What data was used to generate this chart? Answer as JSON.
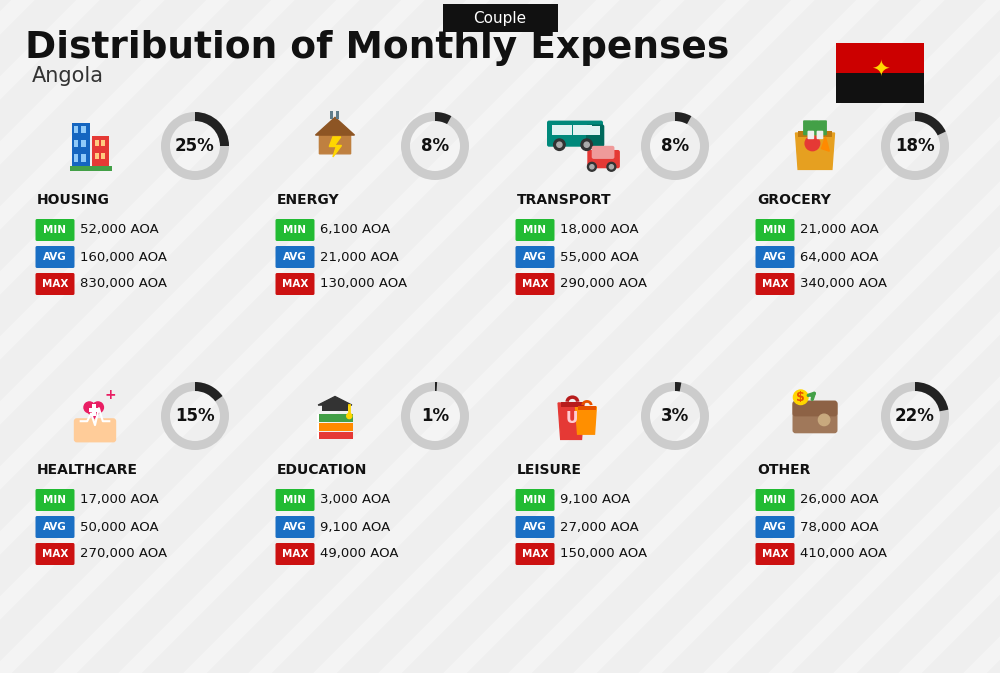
{
  "title": "Distribution of Monthly Expenses",
  "subtitle": "Angola",
  "tag": "Couple",
  "bg_color": "#efefef",
  "categories": [
    {
      "name": "HOUSING",
      "percent": 25,
      "min": "52,000 AOA",
      "avg": "160,000 AOA",
      "max": "830,000 AOA",
      "col": 0,
      "row": 0
    },
    {
      "name": "ENERGY",
      "percent": 8,
      "min": "6,100 AOA",
      "avg": "21,000 AOA",
      "max": "130,000 AOA",
      "col": 1,
      "row": 0
    },
    {
      "name": "TRANSPORT",
      "percent": 8,
      "min": "18,000 AOA",
      "avg": "55,000 AOA",
      "max": "290,000 AOA",
      "col": 2,
      "row": 0
    },
    {
      "name": "GROCERY",
      "percent": 18,
      "min": "21,000 AOA",
      "avg": "64,000 AOA",
      "max": "340,000 AOA",
      "col": 3,
      "row": 0
    },
    {
      "name": "HEALTHCARE",
      "percent": 15,
      "min": "17,000 AOA",
      "avg": "50,000 AOA",
      "max": "270,000 AOA",
      "col": 0,
      "row": 1
    },
    {
      "name": "EDUCATION",
      "percent": 1,
      "min": "3,000 AOA",
      "avg": "9,100 AOA",
      "max": "49,000 AOA",
      "col": 1,
      "row": 1
    },
    {
      "name": "LEISURE",
      "percent": 3,
      "min": "9,100 AOA",
      "avg": "27,000 AOA",
      "max": "150,000 AOA",
      "col": 2,
      "row": 1
    },
    {
      "name": "OTHER",
      "percent": 22,
      "min": "26,000 AOA",
      "avg": "78,000 AOA",
      "max": "410,000 AOA",
      "col": 3,
      "row": 1
    }
  ],
  "min_color": "#22bb33",
  "avg_color": "#1a6fc4",
  "max_color": "#cc1111",
  "ring_color": "#222222",
  "ring_bg_color": "#cccccc",
  "stripe_color": "#ffffff",
  "flag_red": "#cc0000",
  "flag_black": "#111111",
  "flag_gold": "#FFD700"
}
